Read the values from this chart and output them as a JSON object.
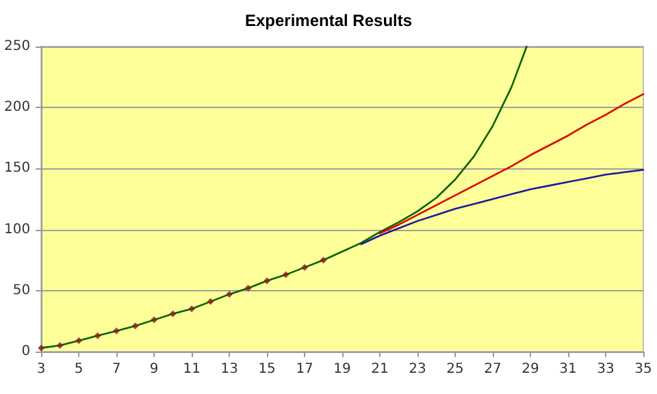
{
  "chart_data": {
    "type": "line",
    "title": "Experimental Results",
    "xlim": [
      3,
      35
    ],
    "xticks": [
      3,
      5,
      7,
      9,
      11,
      13,
      15,
      17,
      19,
      21,
      23,
      25,
      27,
      29,
      31,
      33,
      35
    ],
    "ylim": [
      0,
      250
    ],
    "yticks": [
      0,
      50,
      100,
      150,
      200,
      250
    ],
    "grid": "y",
    "line_style": "solid",
    "series": [
      {
        "color": "#006400",
        "marker": "none",
        "x": [
          3,
          4,
          5,
          6,
          7,
          8,
          9,
          10,
          11,
          12,
          13,
          14,
          15,
          16,
          17,
          18,
          19,
          20,
          21,
          22,
          23,
          24,
          25,
          26,
          27,
          28,
          28.8
        ],
        "values": [
          3,
          5,
          9,
          13,
          17,
          21,
          26,
          31,
          35,
          41,
          47,
          52,
          58,
          63,
          69,
          75,
          82,
          89,
          98,
          106,
          115,
          126,
          141,
          160,
          185,
          217,
          250
        ]
      },
      {
        "color": "#dd0000",
        "marker": "none",
        "x": [
          21,
          22,
          23,
          24,
          25,
          26,
          27,
          28,
          29,
          30,
          31,
          32,
          33,
          34,
          35
        ],
        "values": [
          97,
          104,
          112,
          120,
          128,
          136,
          144,
          152,
          161,
          169,
          177,
          186,
          194,
          203,
          211
        ]
      },
      {
        "color": "#1a1aa0",
        "marker": "none",
        "x": [
          20,
          21,
          22,
          23,
          24,
          25,
          26,
          27,
          28,
          29,
          30,
          31,
          32,
          33,
          34,
          35
        ],
        "values": [
          88,
          95,
          101,
          107,
          112,
          117,
          121,
          125,
          129,
          133,
          136,
          139,
          142,
          145,
          147,
          149
        ]
      },
      {
        "type": "scatter",
        "color": "#8b1a1a",
        "marker": "diamond",
        "x": [
          3,
          4,
          5,
          6,
          7,
          8,
          9,
          10,
          11,
          12,
          13,
          14,
          15,
          16,
          17,
          18
        ],
        "values": [
          3,
          5,
          9,
          13,
          17,
          21,
          26,
          31,
          35,
          41,
          47,
          52,
          58,
          63,
          69,
          75
        ]
      }
    ]
  }
}
